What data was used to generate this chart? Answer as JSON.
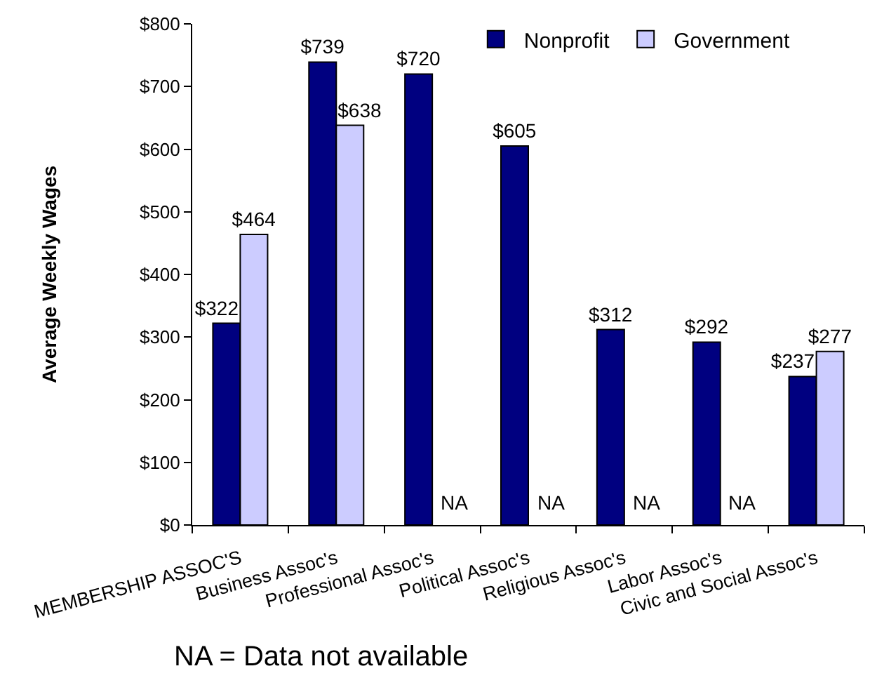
{
  "chart_data": {
    "type": "bar",
    "categories": [
      "MEMBERSHIP ASSOC'S",
      "Business Assoc's",
      "Professional Assoc's",
      "Political Assoc's",
      "Religious Assoc's",
      "Labor Assoc's",
      "Civic and Social Assoc's"
    ],
    "ylabel": "Average Weekly Wages",
    "ylim": [
      0,
      800
    ],
    "yticks": [
      {
        "value": 0,
        "label": "$0"
      },
      {
        "value": 100,
        "label": "$100"
      },
      {
        "value": 200,
        "label": "$200"
      },
      {
        "value": 300,
        "label": "$300"
      },
      {
        "value": 400,
        "label": "$400"
      },
      {
        "value": 500,
        "label": "$500"
      },
      {
        "value": 600,
        "label": "$600"
      },
      {
        "value": 700,
        "label": "$700"
      },
      {
        "value": 800,
        "label": "$800"
      }
    ],
    "series": [
      {
        "name": "Nonprofit",
        "color": "#000080",
        "values": [
          322,
          739,
          720,
          605,
          312,
          292,
          237
        ],
        "value_labels": [
          "$322",
          "$739",
          "$720",
          "$605",
          "$312",
          "$292",
          "$237"
        ]
      },
      {
        "name": "Government",
        "color": "#ccccff",
        "values": [
          464,
          638,
          null,
          null,
          null,
          null,
          277
        ],
        "value_labels": [
          "$464",
          "$638",
          "NA",
          "NA",
          "NA",
          "NA",
          "$277"
        ]
      }
    ],
    "legend": "top right",
    "annotations": [
      "NA = Data not available"
    ]
  }
}
